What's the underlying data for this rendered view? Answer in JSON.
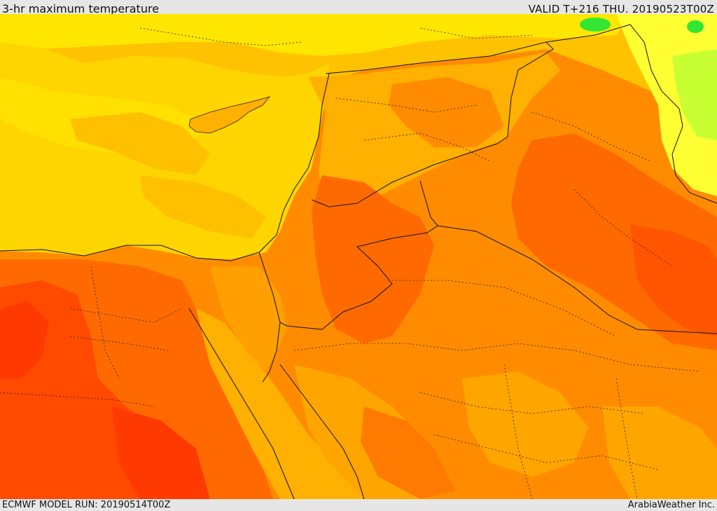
{
  "header": {
    "title": "3-hr maximum temperature",
    "valid": "VALID T+216 THU. 20190523T00Z"
  },
  "footer": {
    "model_run": "ECMWF MODEL RUN: 20190514T00Z",
    "credit": "ArabiaWeather Inc."
  },
  "colors": {
    "sea": "#ffd500",
    "warm_yellow": "#ffe600",
    "amber": "#ffb000",
    "orange": "#ff8c00",
    "deep_orange": "#ff6a00",
    "red_orange": "#ff4a00",
    "yellow_green": "#e6ff33",
    "green": "#33e633"
  }
}
